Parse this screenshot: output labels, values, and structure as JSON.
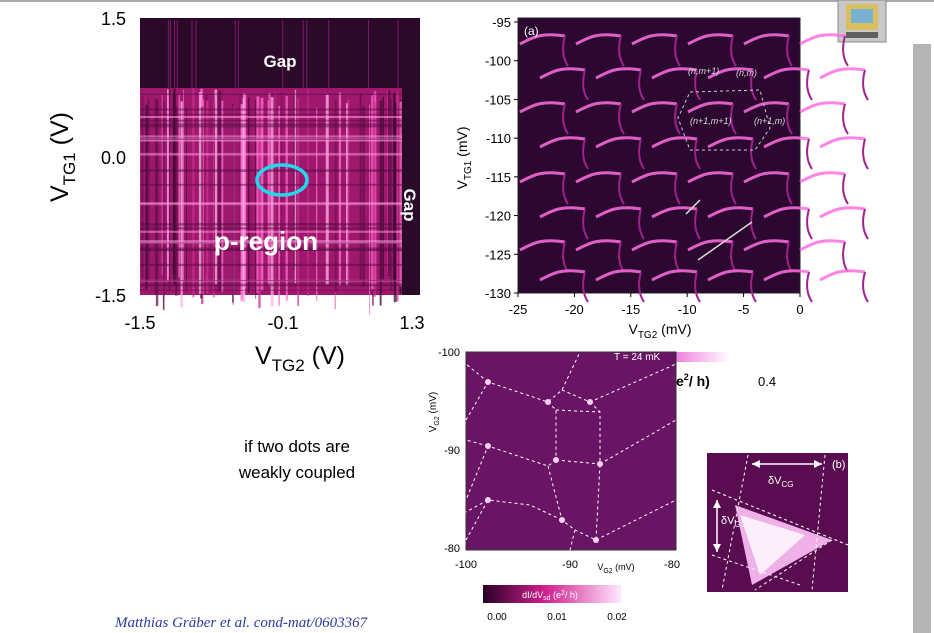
{
  "left_panel": {
    "y_ticks": [
      "1.5",
      "0.0",
      "-1.5"
    ],
    "x_ticks": [
      "-1.5",
      "-0.1",
      "1.3"
    ],
    "y_label": {
      "v": "V",
      "sub": "TG1",
      "unit": " (V)"
    },
    "x_label": {
      "v": "V",
      "sub": "TG2",
      "unit": " (V)"
    },
    "annotations": [
      "Gap",
      "Gap",
      "p-region"
    ]
  },
  "panel_a": {
    "tag": "(a)",
    "y_ticks": [
      "-95",
      "-100",
      "-105",
      "-110",
      "-115",
      "-120",
      "-125",
      "-130"
    ],
    "x_ticks": [
      "-25",
      "-20",
      "-15",
      "-10",
      "-5",
      "0"
    ],
    "y_label": {
      "v": "V",
      "sub": "TG1",
      "unit": " (mV)"
    },
    "x_label": {
      "v": "V",
      "sub": "TG2",
      "unit": " (mV)"
    },
    "states": [
      "(n,m+1)",
      "(n,m)",
      "(n+1,m+1)",
      "(n+1,m)"
    ]
  },
  "note": [
    "if two dots are",
    "weakly coupled"
  ],
  "panel_center": {
    "temperature": "T = 24 mK",
    "y_ticks": [
      "-100",
      "-90",
      "-80"
    ],
    "x_ticks": [
      "-100",
      "-90",
      "-80"
    ],
    "y_label": {
      "v": "V",
      "sub": "G2",
      "unit": " (mV)"
    },
    "x_label": {
      "v": "V",
      "sub": "G2",
      "unit": " (mV)"
    },
    "colorbar": {
      "label": {
        "v": "dI/dV",
        "sub": "sd",
        "pre": " (e",
        "sup": "2",
        "post": "/ h)"
      },
      "ticks": [
        "0.00",
        "0.01",
        "0.02"
      ]
    },
    "hidden_label": {
      "pre": "e",
      "sup": "2",
      "post": "/ h)"
    },
    "hidden_tick": "0.4"
  },
  "panel_b": {
    "tag": "(b)",
    "dv_cg": {
      "v": "δV",
      "sub": "CG"
    },
    "dv_g1": {
      "v": "δV",
      "sub": "G1"
    }
  },
  "citation": "Matthias Gräber et al. cond-mat/0603367"
}
